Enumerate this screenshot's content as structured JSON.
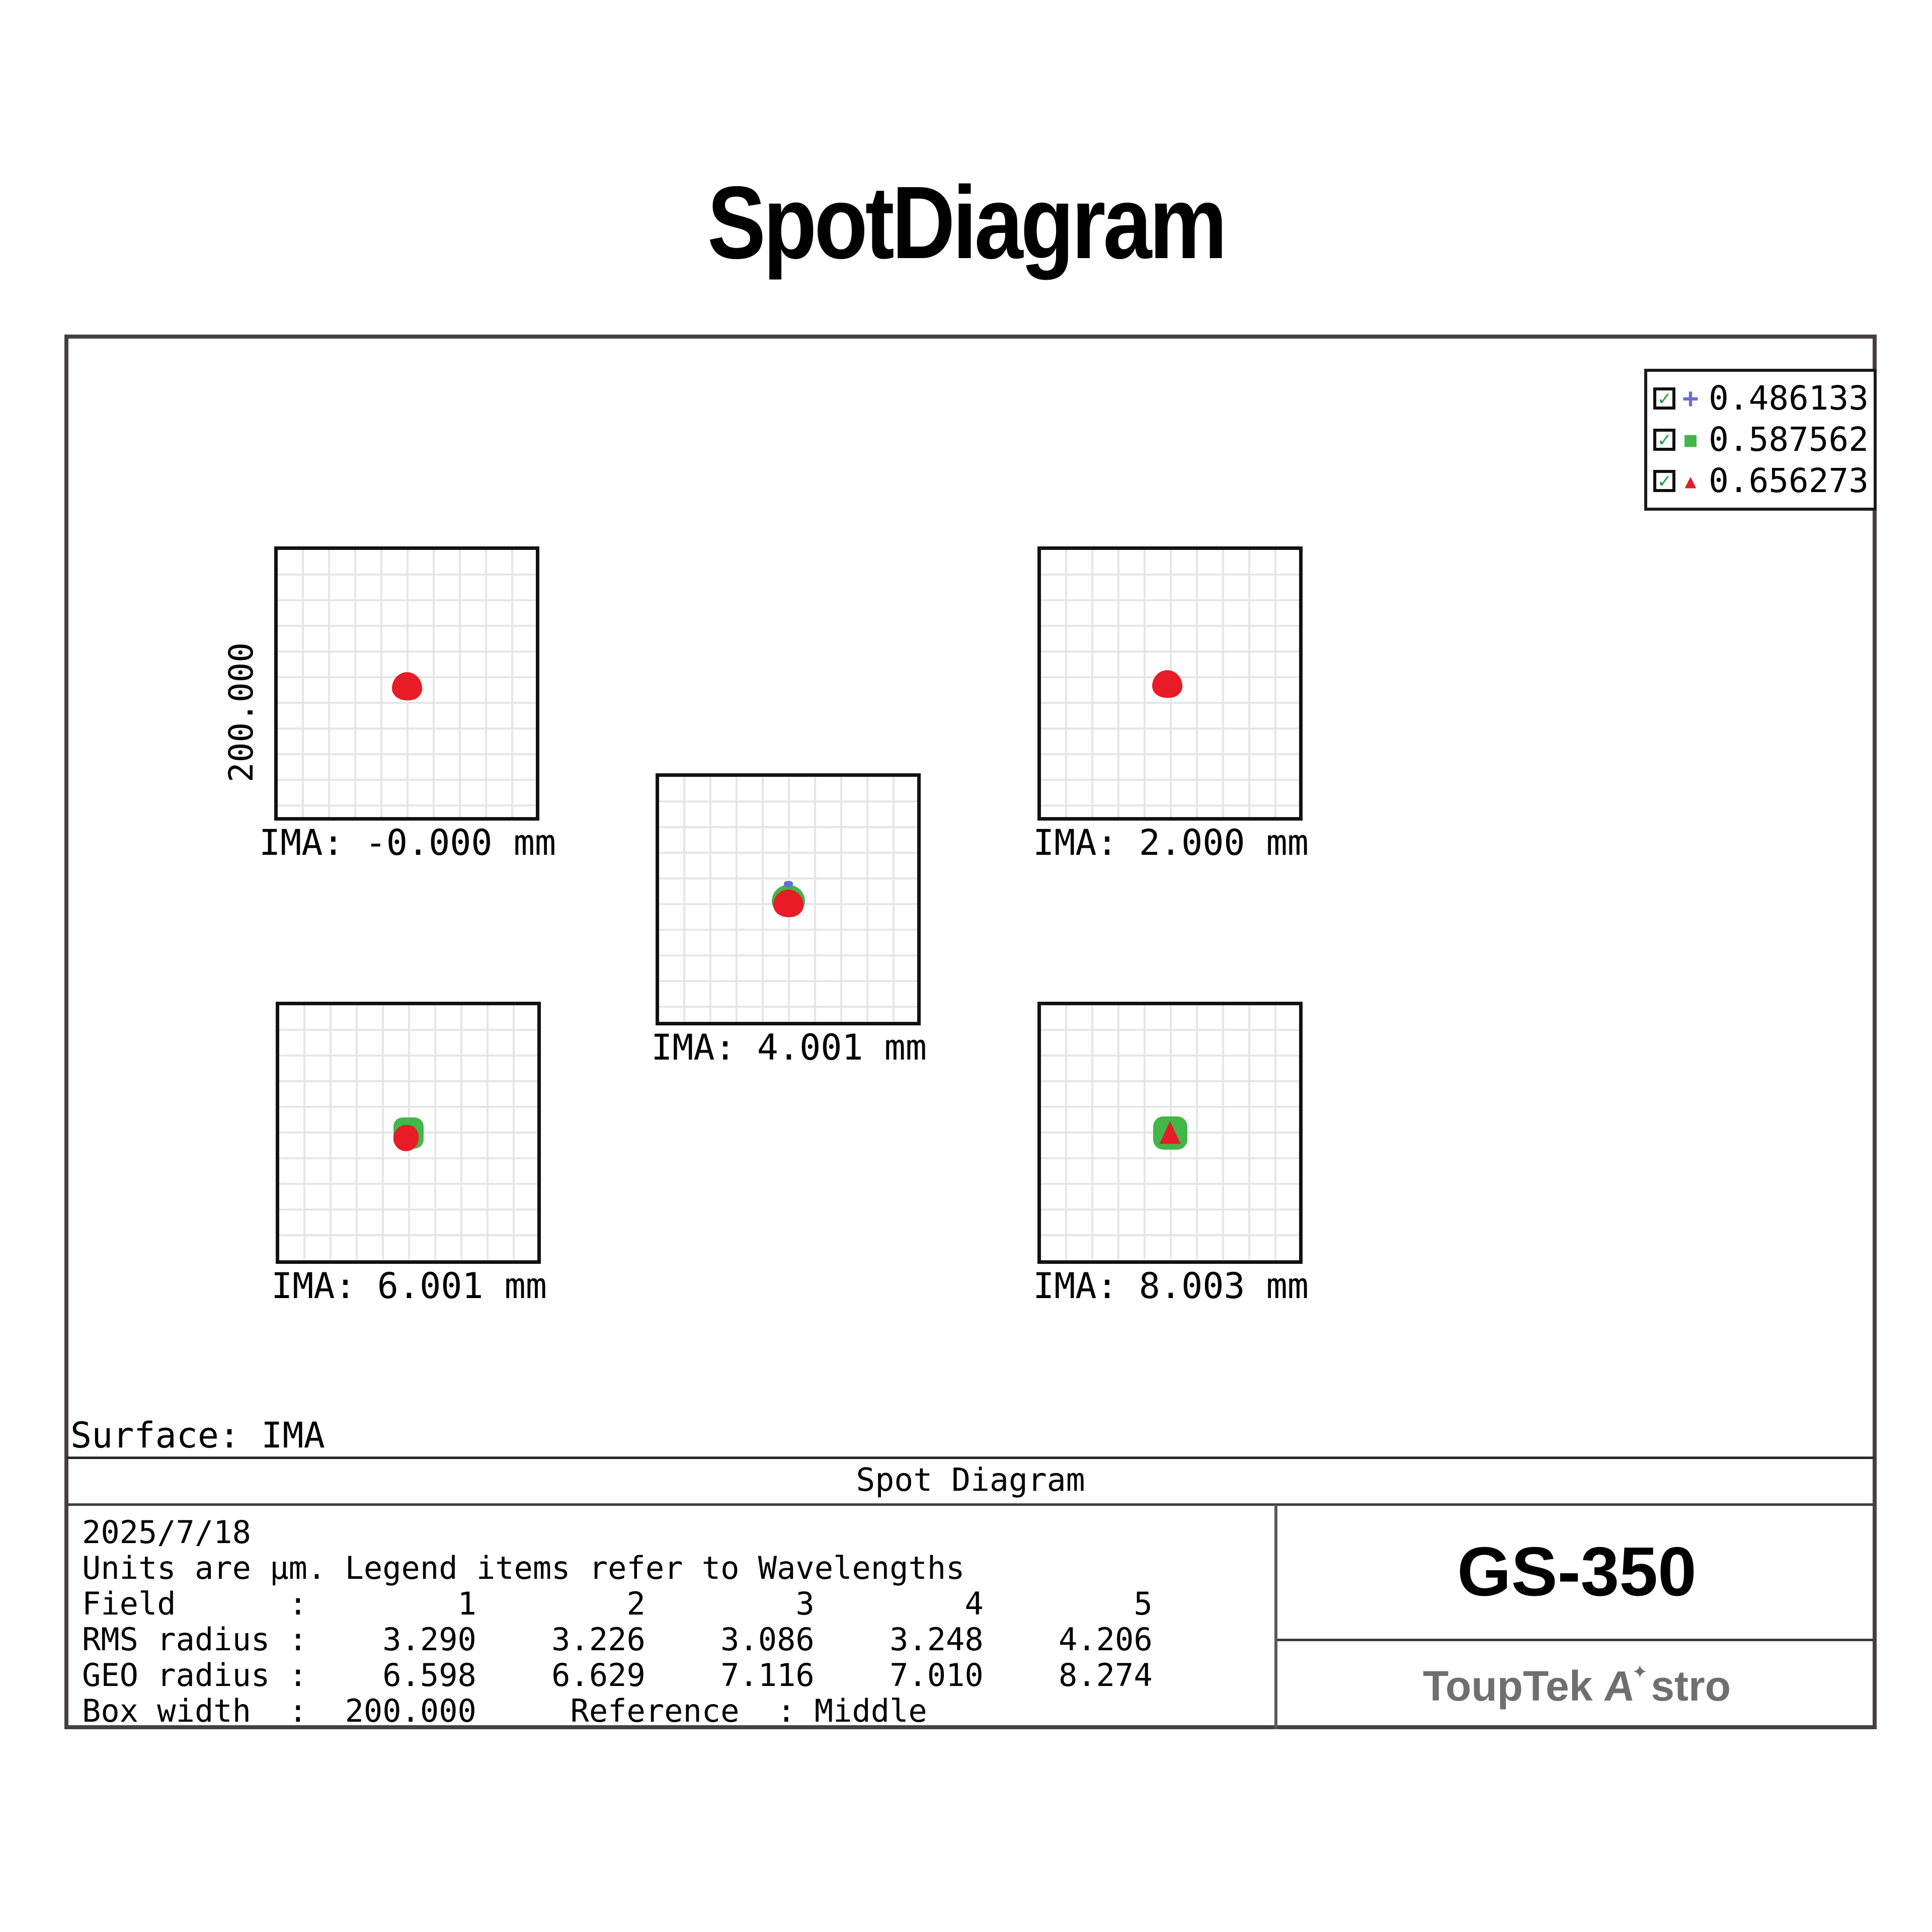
{
  "title": "SpotDiagram",
  "legend": {
    "check_glyph": "✓",
    "checkbox_color": "#1e9e3e",
    "items": [
      {
        "wavelength": "0.486133",
        "marker": "plus",
        "marker_glyph": "+",
        "color": "#6b6bd6"
      },
      {
        "wavelength": "0.587562",
        "marker": "square",
        "marker_glyph": "■",
        "color": "#42b649"
      },
      {
        "wavelength": "0.656273",
        "marker": "triangle",
        "marker_glyph": "▲",
        "color": "#e81b26"
      }
    ]
  },
  "panels": [
    {
      "label": "IMA: -0.000 mm",
      "axis_label": "200.000"
    },
    {
      "label": "IMA: 2.000 mm"
    },
    {
      "label": "IMA: 4.001 mm"
    },
    {
      "label": "IMA: 6.001 mm"
    },
    {
      "label": "IMA: 8.003 mm"
    }
  ],
  "surface_label": "Surface: IMA",
  "section_title": "Spot Diagram",
  "table": {
    "date": "2025/7/18",
    "units_note": "Units are μm. Legend items refer to Wavelengths",
    "field_row": "Field      :        1        2        3        4        5",
    "rms_row": "RMS radius :    3.290    3.226    3.086    3.248    4.206",
    "geo_row": "GEO radius :    6.598    6.629    7.116    7.010    8.274",
    "box_width_row": "Box width  :  200.000     Reference  : Middle"
  },
  "footer": {
    "model": "GS-350",
    "brand_left": "ToupTek ",
    "brand_a": "A",
    "star_glyph": "✦",
    "brand_right": "stro",
    "brand_color": "#6f6f6f"
  },
  "chart_data": {
    "type": "scatter",
    "title": "Spot Diagram",
    "subtitle": "SpotDiagram",
    "surface": "IMA",
    "date": "2025/7/18",
    "units": "μm",
    "legend_position": "top-right",
    "grid": true,
    "box_width_um": 200.0,
    "reference": "Middle",
    "wavelengths_um": [
      0.486133,
      0.587562,
      0.656273
    ],
    "wavelength_markers": [
      "plus",
      "square",
      "triangle"
    ],
    "wavelength_colors": [
      "#6b6bd6",
      "#42b649",
      "#e81b26"
    ],
    "fields": [
      {
        "field": 1,
        "ima_mm": -0.0,
        "rms_radius_um": 3.29,
        "geo_radius_um": 6.598
      },
      {
        "field": 2,
        "ima_mm": 2.0,
        "rms_radius_um": 3.226,
        "geo_radius_um": 6.629
      },
      {
        "field": 3,
        "ima_mm": 4.001,
        "rms_radius_um": 3.086,
        "geo_radius_um": 7.116
      },
      {
        "field": 4,
        "ima_mm": 6.001,
        "rms_radius_um": 3.248,
        "geo_radius_um": 7.01
      },
      {
        "field": 5,
        "ima_mm": 8.003,
        "rms_radius_um": 4.206,
        "geo_radius_um": 8.274
      }
    ]
  }
}
